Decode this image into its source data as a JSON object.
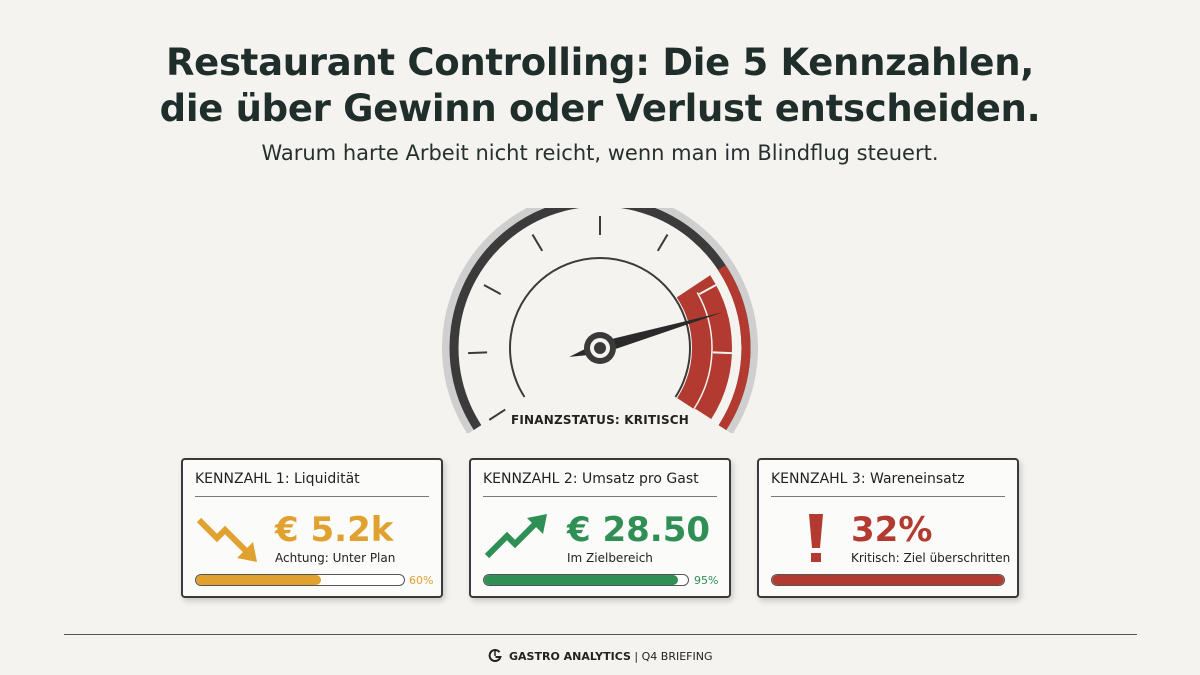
{
  "header": {
    "title_line1": "Restaurant Controlling: Die 5 Kennzahlen,",
    "title_line2": "die über Gewinn oder Verlust entscheiden.",
    "subtitle": "Warum harte Arbeit nicht reicht, wenn man im Blindflug steuert."
  },
  "gauge": {
    "label": "FINANZSTATUS: KRITISCH",
    "needle_fraction": 0.8,
    "critical_zone_start_fraction": 0.73,
    "colors": {
      "critical": "#b23a30",
      "frame": "#3b3b3b"
    }
  },
  "cards": [
    {
      "title": "KENNZAHL 1: Liquidität",
      "value": "€ 5.2k",
      "status": "Achtung: Unter Plan",
      "progress_label": "60%",
      "progress": 0.6,
      "icon": "trend-down-arrow-icon",
      "color": "#e0a12e"
    },
    {
      "title": "KENNZAHL 2: Umsatz pro Gast",
      "value": "€ 28.50",
      "status": "Im Zielbereich",
      "progress_label": "95%",
      "progress": 0.95,
      "icon": "trend-up-arrow-icon",
      "color": "#2f8f55"
    },
    {
      "title": "KENNZAHL 3: Wareneinsatz",
      "value": "32%",
      "status": "Kritisch: Ziel überschritten",
      "progress": 1.0,
      "icon": "exclamation-icon",
      "color": "#b23a30"
    }
  ],
  "footer": {
    "brand": "GASTRO ANALYTICS",
    "separator": " | ",
    "suffix": "Q4 BRIEFING",
    "icon": "gastro-logo-icon"
  }
}
